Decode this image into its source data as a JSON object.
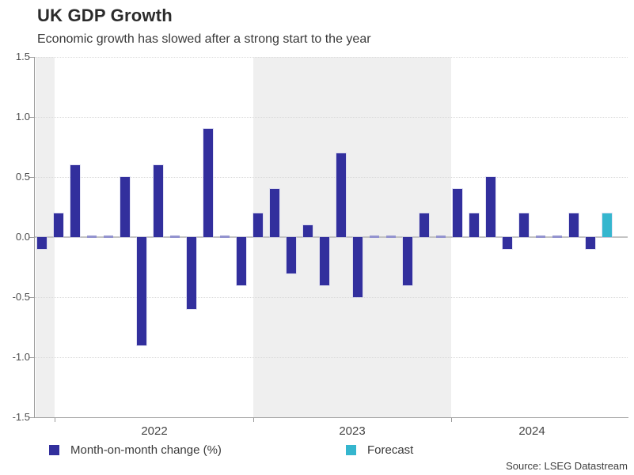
{
  "header": {
    "title": "UK GDP Growth",
    "subtitle": "Economic growth has slowed after a strong start to the year"
  },
  "chart_data": {
    "type": "bar",
    "title": "UK GDP Growth",
    "subtitle": "Economic growth has slowed after a strong start to the year",
    "ylabel": "",
    "ylim": [
      -1.5,
      1.5
    ],
    "ytick_labels": [
      "1.5",
      "1.0",
      "0.5",
      "0.0",
      "-0.5",
      "-1.0",
      "-1.5"
    ],
    "grid": "horizontal dotted lines at 0.5 steps; solid gray line at 0",
    "legend_position": "bottom",
    "series_name": "Month-on-month change (%)",
    "unit": "percent",
    "groups": [
      {
        "year_label": "",
        "shaded": true,
        "values": [
          -0.1
        ]
      },
      {
        "year_label": "2022",
        "shaded": false,
        "values": [
          0.2,
          0.6,
          0.0,
          0.0,
          0.5,
          -0.9,
          0.6,
          0.0,
          -0.6,
          0.9,
          0.0,
          -0.4
        ]
      },
      {
        "year_label": "2023",
        "shaded": true,
        "values": [
          0.2,
          0.4,
          -0.3,
          0.1,
          -0.4,
          0.7,
          -0.5,
          0.0,
          0.0,
          -0.4,
          0.2,
          0.0
        ]
      },
      {
        "year_label": "2024",
        "shaded": false,
        "values": [
          0.4,
          0.2,
          0.5,
          -0.1,
          0.2,
          0.0,
          0.0,
          0.2,
          -0.1,
          0.2
        ],
        "last_is_forecast": true
      }
    ],
    "colors": {
      "bar": "#322f9d",
      "zero_value_dash": "#9393cf",
      "forecast": "#35b6ce",
      "shaded_band": "#efefef"
    }
  },
  "legend": {
    "items": [
      {
        "label": "Month-on-month change (%)",
        "color": "#322f9d"
      },
      {
        "label": "Forecast",
        "color": "#35b6ce"
      }
    ]
  },
  "footer": {
    "source": "Source: LSEG Datastream"
  }
}
